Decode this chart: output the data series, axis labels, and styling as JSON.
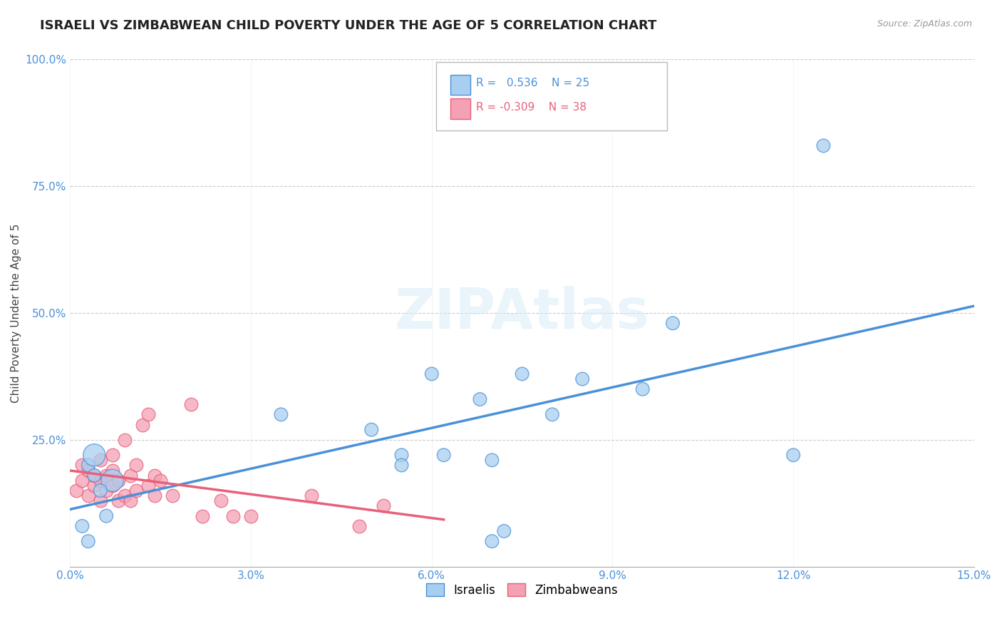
{
  "title": "ISRAELI VS ZIMBABWEAN CHILD POVERTY UNDER THE AGE OF 5 CORRELATION CHART",
  "source": "Source: ZipAtlas.com",
  "ylabel": "Child Poverty Under the Age of 5",
  "xlim": [
    0.0,
    0.15
  ],
  "ylim": [
    0.0,
    1.0
  ],
  "xticks": [
    0.0,
    0.03,
    0.06,
    0.09,
    0.12,
    0.15
  ],
  "xtick_labels": [
    "0.0%",
    "3.0%",
    "6.0%",
    "9.0%",
    "12.0%",
    "15.0%"
  ],
  "yticks": [
    0.0,
    0.25,
    0.5,
    0.75,
    1.0
  ],
  "ytick_labels": [
    "",
    "25.0%",
    "50.0%",
    "75.0%",
    "100.0%"
  ],
  "israelis_color": "#a8cff0",
  "zimbabweans_color": "#f4a0b5",
  "line_israel_color": "#4a90d9",
  "line_zimbabwe_color": "#e8607a",
  "R_israel": 0.536,
  "N_israel": 25,
  "R_zimbabwe": -0.309,
  "N_zimbabwe": 38,
  "watermark": "ZIPAtlas",
  "background_color": "#ffffff",
  "grid_color": "#cccccc",
  "title_fontsize": 13,
  "axis_label_fontsize": 11,
  "tick_fontsize": 11,
  "israelis_x": [
    0.007,
    0.003,
    0.005,
    0.004,
    0.006,
    0.002,
    0.003,
    0.004,
    0.035,
    0.05,
    0.055,
    0.06,
    0.068,
    0.075,
    0.085,
    0.062,
    0.07,
    0.055,
    0.08,
    0.095,
    0.1,
    0.12,
    0.125,
    0.07,
    0.072
  ],
  "israelis_y": [
    0.17,
    0.2,
    0.15,
    0.18,
    0.1,
    0.08,
    0.05,
    0.22,
    0.3,
    0.27,
    0.22,
    0.38,
    0.33,
    0.38,
    0.37,
    0.22,
    0.21,
    0.2,
    0.3,
    0.35,
    0.48,
    0.22,
    0.83,
    0.05,
    0.07
  ],
  "israelis_sizes": [
    500,
    180,
    180,
    180,
    180,
    180,
    180,
    500,
    180,
    180,
    180,
    180,
    180,
    180,
    180,
    180,
    180,
    180,
    180,
    180,
    180,
    180,
    180,
    180,
    180
  ],
  "zimbabweans_x": [
    0.001,
    0.002,
    0.002,
    0.003,
    0.003,
    0.004,
    0.004,
    0.005,
    0.005,
    0.005,
    0.006,
    0.006,
    0.007,
    0.007,
    0.007,
    0.008,
    0.008,
    0.009,
    0.009,
    0.01,
    0.01,
    0.011,
    0.011,
    0.012,
    0.013,
    0.013,
    0.014,
    0.014,
    0.015,
    0.017,
    0.02,
    0.022,
    0.025,
    0.027,
    0.03,
    0.04,
    0.048,
    0.052
  ],
  "zimbabweans_y": [
    0.15,
    0.17,
    0.2,
    0.14,
    0.19,
    0.16,
    0.18,
    0.13,
    0.17,
    0.21,
    0.15,
    0.18,
    0.16,
    0.19,
    0.22,
    0.13,
    0.17,
    0.14,
    0.25,
    0.18,
    0.13,
    0.15,
    0.2,
    0.28,
    0.16,
    0.3,
    0.14,
    0.18,
    0.17,
    0.14,
    0.32,
    0.1,
    0.13,
    0.1,
    0.1,
    0.14,
    0.08,
    0.12
  ],
  "marker_size": 180,
  "tick_color": "#4a90d9"
}
